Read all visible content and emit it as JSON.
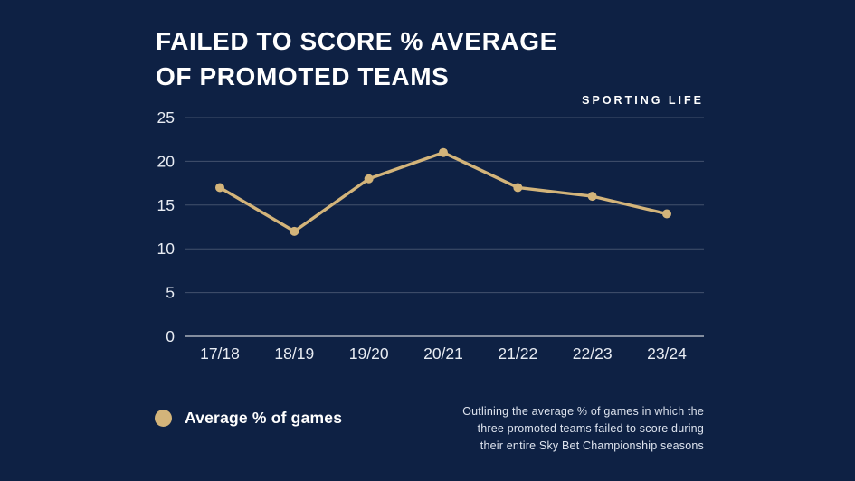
{
  "header": {
    "title_line1": "FAILED TO SCORE % AVERAGE",
    "title_line2": "OF PROMOTED TEAMS",
    "brand": "SPORTING LIFE"
  },
  "legend": {
    "label": "Average % of games"
  },
  "footnote": {
    "lines": [
      "Outlining the average % of games in which the",
      "three promoted teams failed to score during",
      "their entire Sky Bet Championship seasons"
    ]
  },
  "colors": {
    "background": "#0e2144",
    "line": "#d3b47a",
    "title_text": "#ffffff",
    "tick_label": "#e8ecf3",
    "gridline": "rgba(255,255,255,0.22)",
    "axis_line": "rgba(255,255,255,0.65)",
    "footnote_text": "#dde3ee"
  },
  "chart_data": {
    "type": "line",
    "title": "FAILED TO SCORE % AVERAGE OF PROMOTED TEAMS",
    "categories": [
      "17/18",
      "18/19",
      "19/20",
      "20/21",
      "21/22",
      "22/23",
      "23/24"
    ],
    "series": [
      {
        "name": "Average % of games",
        "values": [
          17,
          12,
          18,
          21,
          17,
          16,
          14
        ]
      }
    ],
    "xlabel": "",
    "ylabel": "",
    "ylim": [
      0,
      25
    ],
    "yticks": [
      0,
      5,
      10,
      15,
      20,
      25
    ],
    "grid": true,
    "marker": "circle",
    "legend_position": "bottom-left"
  }
}
